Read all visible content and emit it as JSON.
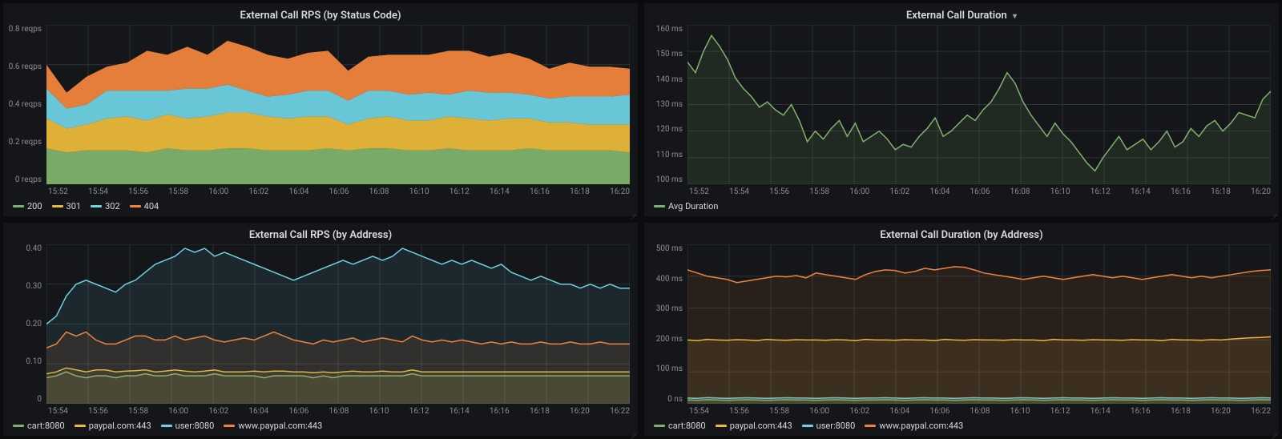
{
  "theme": {
    "background": "#0b0c0e",
    "panel_background": "#141619",
    "grid_color": "#2c3235",
    "axis_text_color": "#8e8e8e",
    "title_color": "#d8d9da",
    "title_fontsize": 13,
    "axis_fontsize": 10,
    "legend_fontsize": 11
  },
  "x_labels_a": [
    "15:52",
    "15:54",
    "15:56",
    "15:58",
    "16:00",
    "16:02",
    "16:04",
    "16:06",
    "16:08",
    "16:10",
    "16:12",
    "16:14",
    "16:16",
    "16:18",
    "16:20"
  ],
  "x_labels_b": [
    "15:54",
    "15:56",
    "15:58",
    "16:00",
    "16:02",
    "16:04",
    "16:06",
    "16:08",
    "16:10",
    "16:12",
    "16:14",
    "16:16",
    "16:18",
    "16:20",
    "16:22"
  ],
  "panels": {
    "rps_status": {
      "title": "External Call RPS (by Status Code)",
      "type": "area-stacked",
      "y_unit": "reqps",
      "ylim": [
        0,
        0.8
      ],
      "ytick_step": 0.2,
      "ytick_labels": [
        "0 reqps",
        "0.2 reqps",
        "0.4 reqps",
        "0.6 reqps",
        "0.8 reqps"
      ],
      "grid": true,
      "series": [
        {
          "name": "200",
          "color": "#7eb26d",
          "values": [
            0.18,
            0.16,
            0.17,
            0.17,
            0.17,
            0.16,
            0.18,
            0.17,
            0.17,
            0.18,
            0.18,
            0.17,
            0.17,
            0.17,
            0.18,
            0.17,
            0.18,
            0.18,
            0.17,
            0.17,
            0.18,
            0.17,
            0.17,
            0.17,
            0.18,
            0.17,
            0.17,
            0.17,
            0.17,
            0.16
          ]
        },
        {
          "name": "301",
          "color": "#eab839",
          "values": [
            0.15,
            0.12,
            0.13,
            0.16,
            0.17,
            0.16,
            0.17,
            0.16,
            0.17,
            0.18,
            0.18,
            0.17,
            0.16,
            0.17,
            0.16,
            0.13,
            0.15,
            0.16,
            0.15,
            0.15,
            0.16,
            0.16,
            0.15,
            0.16,
            0.15,
            0.14,
            0.14,
            0.13,
            0.13,
            0.14
          ]
        },
        {
          "name": "302",
          "color": "#6ed0e0",
          "values": [
            0.15,
            0.1,
            0.1,
            0.14,
            0.13,
            0.15,
            0.12,
            0.15,
            0.14,
            0.14,
            0.11,
            0.1,
            0.12,
            0.13,
            0.13,
            0.12,
            0.14,
            0.13,
            0.13,
            0.14,
            0.11,
            0.14,
            0.14,
            0.13,
            0.12,
            0.12,
            0.13,
            0.14,
            0.14,
            0.15
          ]
        },
        {
          "name": "404",
          "color": "#ef843c",
          "values": [
            0.12,
            0.08,
            0.14,
            0.12,
            0.14,
            0.2,
            0.18,
            0.21,
            0.17,
            0.22,
            0.22,
            0.21,
            0.18,
            0.19,
            0.2,
            0.15,
            0.17,
            0.18,
            0.2,
            0.19,
            0.22,
            0.2,
            0.18,
            0.2,
            0.18,
            0.15,
            0.17,
            0.15,
            0.15,
            0.13
          ]
        }
      ],
      "legend": [
        {
          "label": "200",
          "color": "#7eb26d"
        },
        {
          "label": "301",
          "color": "#eab839"
        },
        {
          "label": "302",
          "color": "#6ed0e0"
        },
        {
          "label": "404",
          "color": "#ef843c"
        }
      ]
    },
    "duration": {
      "title": "External Call Duration",
      "has_dropdown": true,
      "type": "line-area",
      "y_unit": "ms",
      "ylim": [
        100,
        160
      ],
      "ytick_step": 10,
      "ytick_labels": [
        "100 ms",
        "110 ms",
        "120 ms",
        "130 ms",
        "140 ms",
        "150 ms",
        "160 ms"
      ],
      "grid": true,
      "series": [
        {
          "name": "Avg Duration",
          "color": "#7eb26d",
          "fill_opacity": 0.12,
          "values": [
            146,
            142,
            150,
            156,
            152,
            147,
            140,
            136,
            133,
            129,
            131,
            128,
            126,
            130,
            124,
            116,
            120,
            117,
            121,
            124,
            118,
            123,
            116,
            118,
            120,
            117,
            113,
            115,
            114,
            118,
            121,
            125,
            118,
            120,
            123,
            126,
            124,
            128,
            131,
            136,
            142,
            138,
            131,
            126,
            122,
            118,
            123,
            119,
            116,
            112,
            108,
            105,
            110,
            114,
            118,
            113,
            115,
            117,
            113,
            116,
            120,
            114,
            116,
            121,
            118,
            122,
            124,
            120,
            123,
            127,
            126,
            125,
            132,
            135
          ]
        }
      ],
      "legend": [
        {
          "label": "Avg Duration",
          "color": "#7eb26d"
        }
      ]
    },
    "rps_address": {
      "title": "External Call RPS (by Address)",
      "type": "line-area",
      "y_unit": "",
      "ylim": [
        0,
        0.4
      ],
      "ytick_step": 0.1,
      "ytick_labels": [
        "0",
        "0.10",
        "0.20",
        "0.30",
        "0.40"
      ],
      "grid": true,
      "series": [
        {
          "name": "cart:8080",
          "color": "#7eb26d",
          "fill_opacity": 0.1,
          "values": [
            0.065,
            0.07,
            0.08,
            0.07,
            0.065,
            0.07,
            0.07,
            0.065,
            0.07,
            0.07,
            0.075,
            0.07,
            0.07,
            0.075,
            0.07,
            0.07,
            0.07,
            0.075,
            0.07,
            0.07,
            0.07,
            0.07,
            0.065,
            0.07,
            0.07,
            0.07,
            0.07,
            0.065,
            0.07,
            0.065,
            0.07,
            0.07,
            0.07,
            0.07,
            0.07,
            0.07,
            0.07,
            0.075,
            0.07,
            0.07,
            0.07,
            0.07,
            0.07,
            0.07,
            0.07,
            0.07,
            0.07,
            0.07,
            0.07,
            0.07,
            0.07,
            0.07,
            0.07,
            0.07,
            0.07,
            0.07,
            0.07,
            0.07,
            0.07,
            0.07
          ]
        },
        {
          "name": "paypal.com:443",
          "color": "#eab839",
          "fill_opacity": 0.1,
          "values": [
            0.075,
            0.08,
            0.09,
            0.085,
            0.08,
            0.085,
            0.085,
            0.08,
            0.082,
            0.083,
            0.085,
            0.08,
            0.082,
            0.085,
            0.082,
            0.08,
            0.082,
            0.085,
            0.08,
            0.08,
            0.08,
            0.082,
            0.08,
            0.082,
            0.082,
            0.08,
            0.08,
            0.078,
            0.08,
            0.078,
            0.08,
            0.082,
            0.08,
            0.08,
            0.082,
            0.08,
            0.08,
            0.085,
            0.08,
            0.08,
            0.08,
            0.08,
            0.08,
            0.08,
            0.08,
            0.08,
            0.08,
            0.08,
            0.08,
            0.08,
            0.08,
            0.08,
            0.08,
            0.08,
            0.08,
            0.08,
            0.08,
            0.08,
            0.08,
            0.08
          ]
        },
        {
          "name": "user:8080",
          "color": "#6ed0e0",
          "fill_opacity": 0.1,
          "values": [
            0.2,
            0.22,
            0.27,
            0.3,
            0.31,
            0.3,
            0.29,
            0.28,
            0.3,
            0.31,
            0.33,
            0.35,
            0.36,
            0.37,
            0.39,
            0.38,
            0.39,
            0.37,
            0.38,
            0.37,
            0.36,
            0.35,
            0.34,
            0.33,
            0.32,
            0.31,
            0.32,
            0.33,
            0.34,
            0.35,
            0.36,
            0.35,
            0.36,
            0.37,
            0.36,
            0.37,
            0.39,
            0.38,
            0.37,
            0.36,
            0.35,
            0.36,
            0.35,
            0.36,
            0.35,
            0.34,
            0.35,
            0.33,
            0.32,
            0.31,
            0.32,
            0.31,
            0.3,
            0.3,
            0.29,
            0.3,
            0.29,
            0.3,
            0.29,
            0.29
          ]
        },
        {
          "name": "www.paypal.com:443",
          "color": "#ef843c",
          "fill_opacity": 0.1,
          "values": [
            0.14,
            0.15,
            0.18,
            0.17,
            0.18,
            0.16,
            0.15,
            0.15,
            0.16,
            0.17,
            0.17,
            0.16,
            0.16,
            0.17,
            0.16,
            0.165,
            0.17,
            0.16,
            0.155,
            0.16,
            0.165,
            0.16,
            0.17,
            0.18,
            0.17,
            0.16,
            0.155,
            0.15,
            0.16,
            0.155,
            0.16,
            0.165,
            0.155,
            0.16,
            0.165,
            0.16,
            0.155,
            0.17,
            0.16,
            0.155,
            0.16,
            0.155,
            0.16,
            0.155,
            0.15,
            0.155,
            0.15,
            0.155,
            0.15,
            0.15,
            0.155,
            0.15,
            0.15,
            0.155,
            0.15,
            0.15,
            0.155,
            0.15,
            0.15,
            0.15
          ]
        }
      ],
      "legend": [
        {
          "label": "cart:8080",
          "color": "#7eb26d"
        },
        {
          "label": "paypal.com:443",
          "color": "#eab839"
        },
        {
          "label": "user:8080",
          "color": "#6ed0e0"
        },
        {
          "label": "www.paypal.com:443",
          "color": "#ef843c"
        }
      ]
    },
    "duration_address": {
      "title": "External Call Duration (by Address)",
      "type": "line-area",
      "y_unit": "ms",
      "ylim": [
        0,
        500
      ],
      "ytick_step": 100,
      "ytick_labels": [
        "0 ns",
        "100 ms",
        "200 ms",
        "300 ms",
        "400 ms",
        "500 ms"
      ],
      "grid": true,
      "series": [
        {
          "name": "cart:8080",
          "color": "#7eb26d",
          "fill_opacity": 0.1,
          "values": [
            12,
            11,
            13,
            12,
            11,
            12,
            13,
            12,
            11,
            12,
            13,
            12,
            12,
            11,
            12,
            13,
            12,
            11,
            12,
            12,
            13,
            12,
            11,
            12,
            13,
            12,
            12,
            11,
            12,
            13,
            12,
            12,
            11,
            12,
            13,
            12,
            11,
            12,
            13,
            12,
            12,
            11,
            12,
            13,
            12,
            12,
            11,
            12,
            13,
            12,
            12,
            11,
            12,
            13,
            12,
            12,
            11,
            12,
            13,
            12
          ]
        },
        {
          "name": "paypal.com:443",
          "color": "#eab839",
          "fill_opacity": 0.1,
          "values": [
            200,
            198,
            202,
            200,
            199,
            201,
            200,
            198,
            202,
            200,
            199,
            201,
            200,
            200,
            199,
            201,
            200,
            198,
            202,
            200,
            200,
            199,
            201,
            200,
            200,
            198,
            202,
            200,
            199,
            201,
            200,
            200,
            199,
            201,
            200,
            200,
            198,
            202,
            200,
            200,
            199,
            201,
            200,
            200,
            199,
            201,
            200,
            200,
            198,
            202,
            200,
            200,
            199,
            201,
            200,
            203,
            205,
            207,
            208,
            210
          ]
        },
        {
          "name": "user:8080",
          "color": "#6ed0e0",
          "fill_opacity": 0.1,
          "values": [
            18,
            17,
            19,
            18,
            17,
            18,
            19,
            18,
            17,
            18,
            19,
            18,
            18,
            17,
            18,
            19,
            18,
            17,
            18,
            18,
            19,
            18,
            17,
            18,
            19,
            18,
            18,
            17,
            18,
            19,
            18,
            18,
            17,
            18,
            19,
            18,
            17,
            18,
            19,
            18,
            18,
            17,
            18,
            19,
            18,
            18,
            17,
            18,
            19,
            18,
            18,
            17,
            18,
            19,
            18,
            18,
            17,
            18,
            19,
            18
          ]
        },
        {
          "name": "www.paypal.com:443",
          "color": "#ef843c",
          "fill_opacity": 0.1,
          "values": [
            420,
            410,
            400,
            395,
            390,
            380,
            385,
            390,
            395,
            400,
            398,
            402,
            395,
            410,
            405,
            400,
            395,
            390,
            405,
            415,
            420,
            418,
            410,
            415,
            425,
            420,
            425,
            430,
            428,
            420,
            410,
            405,
            400,
            395,
            390,
            395,
            400,
            395,
            390,
            395,
            400,
            405,
            400,
            395,
            400,
            395,
            390,
            395,
            400,
            405,
            400,
            395,
            400,
            395,
            400,
            405,
            410,
            415,
            418,
            420
          ]
        }
      ],
      "legend": [
        {
          "label": "cart:8080",
          "color": "#7eb26d"
        },
        {
          "label": "paypal.com:443",
          "color": "#eab839"
        },
        {
          "label": "user:8080",
          "color": "#6ed0e0"
        },
        {
          "label": "www.paypal.com:443",
          "color": "#ef843c"
        }
      ]
    }
  }
}
